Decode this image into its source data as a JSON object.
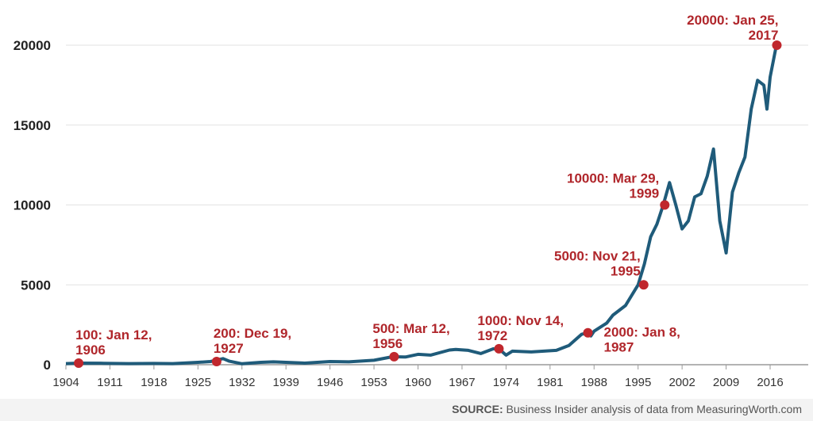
{
  "chart_data": {
    "type": "line",
    "title": "",
    "xlabel": "",
    "ylabel": "",
    "xlim": [
      1904,
      2017
    ],
    "ylim": [
      0,
      20500
    ],
    "grid": true,
    "y_ticks": [
      0,
      5000,
      10000,
      15000,
      20000
    ],
    "y_tick_labels": [
      "0",
      "5000",
      "10000",
      "15000",
      "20000"
    ],
    "x_ticks": [
      1904,
      1911,
      1918,
      1925,
      1932,
      1939,
      1946,
      1953,
      1960,
      1967,
      1974,
      1981,
      1988,
      1995,
      2002,
      2009,
      2016
    ],
    "x_tick_labels": [
      "1904",
      "1911",
      "1918",
      "1925",
      "1932",
      "1939",
      "1946",
      "1953",
      "1960",
      "1967",
      "1974",
      "1981",
      "1988",
      "1995",
      "2002",
      "2009",
      "2016"
    ],
    "line_color": "#1f5b7a",
    "marker_color": "#c0272d",
    "annotation_color": "#b0262b",
    "series": [
      {
        "x": [
          1904,
          1906,
          1910,
          1914,
          1918,
          1921,
          1925,
          1927,
          1929,
          1930,
          1932,
          1935,
          1937,
          1939,
          1942,
          1946,
          1949,
          1953,
          1956,
          1958,
          1960,
          1962,
          1965,
          1966,
          1968,
          1970,
          1972,
          1973,
          1974,
          1975,
          1978,
          1980,
          1982,
          1984,
          1986,
          1987,
          1987.5,
          1988,
          1990,
          1991,
          1993,
          1995,
          1996,
          1997,
          1998,
          1999,
          2000,
          2001,
          2002,
          2003,
          2004,
          2005,
          2006,
          2007,
          2008,
          2009,
          2010,
          2011,
          2012,
          2013,
          2014,
          2015,
          2015.5,
          2016,
          2017
        ],
        "y": [
          70,
          100,
          90,
          70,
          80,
          70,
          150,
          200,
          380,
          220,
          60,
          150,
          180,
          150,
          100,
          200,
          180,
          280,
          500,
          480,
          650,
          600,
          920,
          960,
          900,
          700,
          1000,
          950,
          600,
          850,
          800,
          850,
          900,
          1200,
          1900,
          2000,
          1800,
          2100,
          2600,
          3100,
          3700,
          5000,
          6300,
          8000,
          8800,
          10000,
          11400,
          10000,
          8500,
          9000,
          10500,
          10700,
          11800,
          13500,
          9000,
          7000,
          10800,
          12000,
          13000,
          16000,
          17800,
          17500,
          16000,
          18000,
          20000
        ]
      }
    ],
    "annotations": [
      {
        "value": 100,
        "line1": "100: Jan 12,",
        "line2": "1906",
        "x": 1906.03,
        "y": 100
      },
      {
        "value": 200,
        "line1": "200: Dec 19,",
        "line2": "1927",
        "x": 1927.97,
        "y": 200
      },
      {
        "value": 500,
        "line1": "500: Mar 12,",
        "line2": "1956",
        "x": 1956.2,
        "y": 500
      },
      {
        "value": 1000,
        "line1": "1000: Nov 14,",
        "line2": "1972",
        "x": 1972.87,
        "y": 1000
      },
      {
        "value": 2000,
        "line1": "2000: Jan 8,",
        "line2": "1987",
        "x": 1987.02,
        "y": 2000
      },
      {
        "value": 5000,
        "line1": "5000: Nov 21,",
        "line2": "1995",
        "x": 1995.89,
        "y": 5000
      },
      {
        "value": 10000,
        "line1": "10000: Mar 29,",
        "line2": "1999",
        "x": 1999.24,
        "y": 10000
      },
      {
        "value": 20000,
        "line1": "20000: Jan 25,",
        "line2": "2017",
        "x": 2017.07,
        "y": 20000
      }
    ]
  },
  "source": {
    "label": "SOURCE:",
    "text": " Business Insider analysis of data from MeasuringWorth.com"
  }
}
